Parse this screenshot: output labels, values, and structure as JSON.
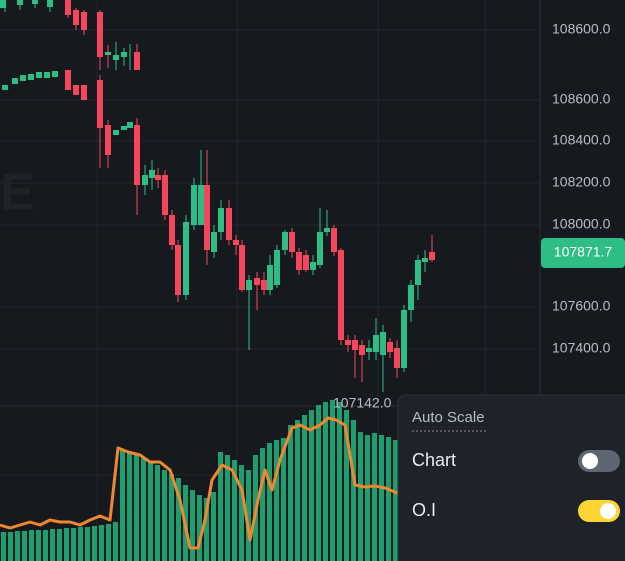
{
  "watermark": "E",
  "price_axis": {
    "labels": [
      {
        "text": "108600.0",
        "row": 0
      },
      {
        "text": "108600.0",
        "row": 1
      },
      {
        "text": "108400.0",
        "row": 2
      },
      {
        "text": "108200.0",
        "row": 3
      },
      {
        "text": "108000.0",
        "row": 4
      },
      {
        "text": "107600.0",
        "row": 5
      },
      {
        "text": "107400.0",
        "row": 6
      }
    ]
  },
  "current_price": "107871.7",
  "low_label": "107142.0",
  "settings": {
    "title": "Auto Scale",
    "items": [
      {
        "label": "Chart",
        "on": false
      },
      {
        "label": "O.I",
        "on": true
      }
    ]
  }
}
